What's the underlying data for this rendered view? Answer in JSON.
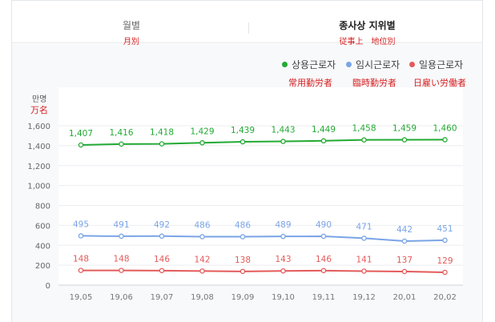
{
  "tabs": [
    {
      "label": "월별",
      "sub": "月別",
      "active": false
    },
    {
      "label": "종사상 지위별",
      "sub": "従事上　地位別",
      "active": true
    }
  ],
  "unit": {
    "label": "만명",
    "sub": "万名"
  },
  "legend": [
    {
      "name": "상용근로자",
      "sub": "常用勤労者",
      "color": "#22aa33"
    },
    {
      "name": "임시근로자",
      "sub": "臨時勤労者",
      "color": "#7aa4e6"
    },
    {
      "name": "일용근로자",
      "sub": "日雇い労働者",
      "color": "#e45a5a"
    }
  ],
  "chart_data": {
    "type": "line",
    "x": [
      "19,05",
      "19,06",
      "19,07",
      "19,08",
      "19,09",
      "19,10",
      "19,11",
      "19,12",
      "20,01",
      "20,02"
    ],
    "ylim": [
      0,
      1600
    ],
    "yticks": [
      "0",
      "200",
      "400",
      "600",
      "800",
      "1,000",
      "1,200",
      "1,400",
      "1,600"
    ],
    "grid": true,
    "legend_position": "top-right",
    "series": [
      {
        "name": "상용근로자",
        "color": "#22aa33",
        "values": [
          1407,
          1416,
          1418,
          1429,
          1439,
          1443,
          1449,
          1458,
          1459,
          1460
        ],
        "labels": [
          "1,407",
          "1,416",
          "1,418",
          "1,429",
          "1,439",
          "1,443",
          "1,449",
          "1,458",
          "1,459",
          "1,460"
        ]
      },
      {
        "name": "임시근로자",
        "color": "#7aa4e6",
        "values": [
          495,
          491,
          492,
          486,
          486,
          489,
          490,
          471,
          442,
          451
        ],
        "labels": [
          "495",
          "491",
          "492",
          "486",
          "486",
          "489",
          "490",
          "471",
          "442",
          "451"
        ]
      },
      {
        "name": "일용근로자",
        "color": "#e45a5a",
        "values": [
          148,
          148,
          146,
          142,
          138,
          143,
          146,
          141,
          137,
          129
        ],
        "labels": [
          "148",
          "148",
          "146",
          "142",
          "138",
          "143",
          "146",
          "141",
          "137",
          "129"
        ]
      }
    ]
  }
}
